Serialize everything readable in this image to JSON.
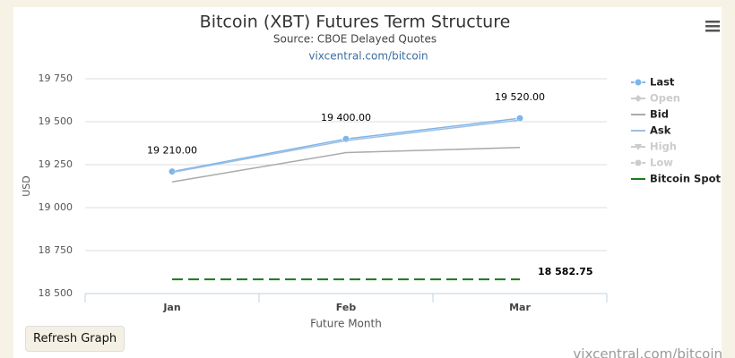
{
  "chart_data": {
    "type": "line",
    "title": "Bitcoin (XBT) Futures Term Structure",
    "subtitle": "Source: CBOE Delayed Quotes",
    "link": "vixcentral.com/bitcoin",
    "y_label": "USD",
    "x_label": "Future Month",
    "categories": [
      "Jan",
      "Feb",
      "Mar"
    ],
    "ylim": [
      18500,
      19750
    ],
    "yticks": [
      {
        "value": 18500,
        "label": "18 500"
      },
      {
        "value": 18750,
        "label": "18 750"
      },
      {
        "value": 19000,
        "label": "19 000"
      },
      {
        "value": 19250,
        "label": "19 250"
      },
      {
        "value": 19500,
        "label": "19 500"
      },
      {
        "value": 19750,
        "label": "19 750"
      }
    ],
    "grid": true,
    "legend": "right",
    "series": [
      {
        "name": "Last",
        "color": "#7cb5ec",
        "marker": "circle",
        "visible": true,
        "values": [
          19210,
          19400,
          19520
        ],
        "value_labels": [
          "19 210.00",
          "19 400.00",
          "19 520.00"
        ]
      },
      {
        "name": "Open",
        "color": "#cccccc",
        "marker": "diamond",
        "visible": false,
        "values": [
          null,
          null,
          null
        ]
      },
      {
        "name": "Bid",
        "color": "#aaaaaa",
        "visible": true,
        "values": [
          19150,
          19320,
          19350
        ]
      },
      {
        "name": "Ask",
        "color": "#9fbfe0",
        "visible": true,
        "values": [
          19205,
          19390,
          19510
        ]
      },
      {
        "name": "High",
        "color": "#cccccc",
        "marker": "triangle",
        "visible": false,
        "values": [
          null,
          null,
          null
        ]
      },
      {
        "name": "Low",
        "color": "#cccccc",
        "marker": "circle",
        "visible": false,
        "values": [
          null,
          null,
          null
        ]
      },
      {
        "name": "Bitcoin Spot",
        "color": "#1a7a1a",
        "dashed": true,
        "visible": true,
        "values": [
          18582.75,
          18582.75,
          18582.75
        ],
        "value_labels": [
          null,
          null,
          "18 582.75"
        ]
      }
    ],
    "button": "Refresh Graph",
    "watermark": "vixcentral.com/bitcoin"
  }
}
